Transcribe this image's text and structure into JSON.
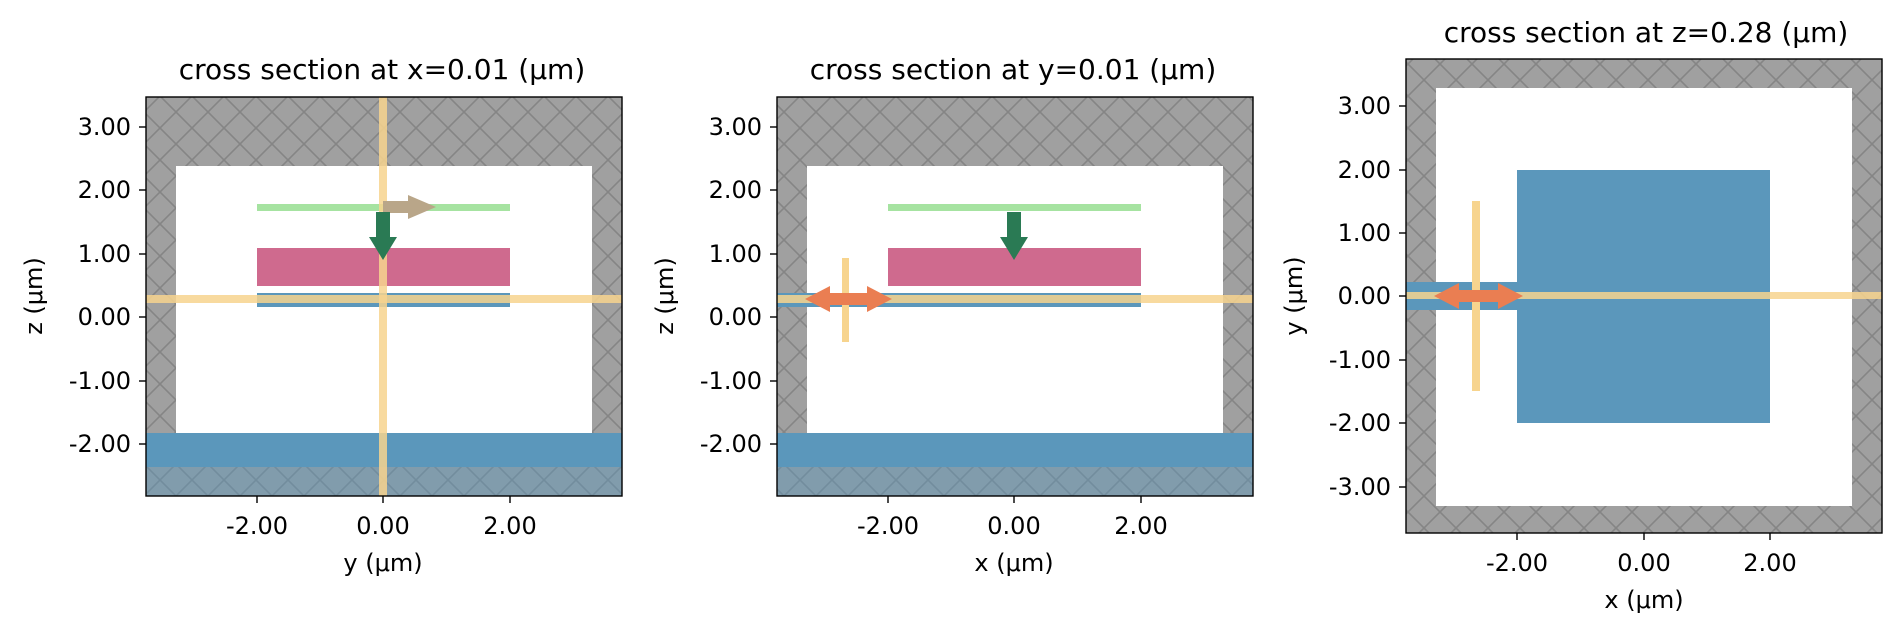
{
  "panels": [
    {
      "title": "cross section at x=0.01 (μm)",
      "xlabel": "y (μm)",
      "ylabel": "z (μm)",
      "xticks": [
        "-2.00",
        "0.00",
        "2.00"
      ],
      "yticks": [
        "3.00",
        "2.00",
        "1.00",
        "0.00",
        "-1.00",
        "-2.00"
      ]
    },
    {
      "title": "cross section at y=0.01 (μm)",
      "xlabel": "x (μm)",
      "ylabel": "z (μm)",
      "xticks": [
        "-2.00",
        "0.00",
        "2.00"
      ],
      "yticks": [
        "3.00",
        "2.00",
        "1.00",
        "0.00",
        "-1.00",
        "-2.00"
      ]
    },
    {
      "title": "cross section at z=0.28 (μm)",
      "xlabel": "x (μm)",
      "ylabel": "y (μm)",
      "xticks": [
        "-2.00",
        "0.00",
        "2.00"
      ],
      "yticks": [
        "3.00",
        "2.00",
        "1.00",
        "0.00",
        "-1.00",
        "-2.00",
        "-3.00"
      ]
    }
  ],
  "colors": {
    "pml_gray": "#808080",
    "substrate_blue": "#5b97bb",
    "pink_layer": "#cf6a8e",
    "green_monitor": "#a6e3a1",
    "mode_plane_yellow": "#f7d48e",
    "green_arrow": "#2a7a54",
    "brown_arrow": "#b9a689",
    "orange_arrow": "#ea7e52"
  }
}
